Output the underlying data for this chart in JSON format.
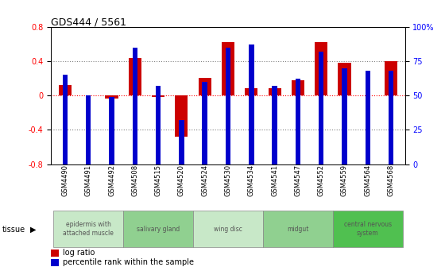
{
  "title": "GDS444 / 5561",
  "samples": [
    "GSM4490",
    "GSM4491",
    "GSM4492",
    "GSM4508",
    "GSM4515",
    "GSM4520",
    "GSM4524",
    "GSM4530",
    "GSM4534",
    "GSM4541",
    "GSM4547",
    "GSM4552",
    "GSM4559",
    "GSM4564",
    "GSM4568"
  ],
  "log_ratio": [
    0.12,
    0.0,
    -0.035,
    0.44,
    -0.02,
    -0.48,
    0.2,
    0.62,
    0.08,
    0.08,
    0.18,
    0.62,
    0.38,
    0.0,
    0.4
  ],
  "percentile": [
    65,
    50,
    49,
    85,
    57,
    32,
    60,
    85,
    87,
    57,
    62,
    82,
    70,
    68,
    68
  ],
  "tissue_groups": [
    {
      "label": "epidermis with\nattached muscle",
      "start": 0,
      "end": 2,
      "color": "#c8e8c8"
    },
    {
      "label": "salivary gland",
      "start": 3,
      "end": 5,
      "color": "#90d090"
    },
    {
      "label": "wing disc",
      "start": 6,
      "end": 8,
      "color": "#c8e8c8"
    },
    {
      "label": "midgut",
      "start": 9,
      "end": 11,
      "color": "#90d090"
    },
    {
      "label": "central nervous\nsystem",
      "start": 12,
      "end": 14,
      "color": "#50c050"
    }
  ],
  "bar_color_red": "#cc0000",
  "bar_color_blue": "#0000cc",
  "ylim_left": [
    -0.8,
    0.8
  ],
  "ylim_right": [
    0,
    100
  ],
  "yticks_left": [
    -0.8,
    -0.4,
    0.0,
    0.4,
    0.8
  ],
  "ytick_labels_left": [
    "-0.8",
    "-0.4",
    "0",
    "0.4",
    "0.8"
  ],
  "yticks_right": [
    0,
    25,
    50,
    75,
    100
  ],
  "ytick_labels_right": [
    "0",
    "25",
    "50",
    "75",
    "100%"
  ]
}
